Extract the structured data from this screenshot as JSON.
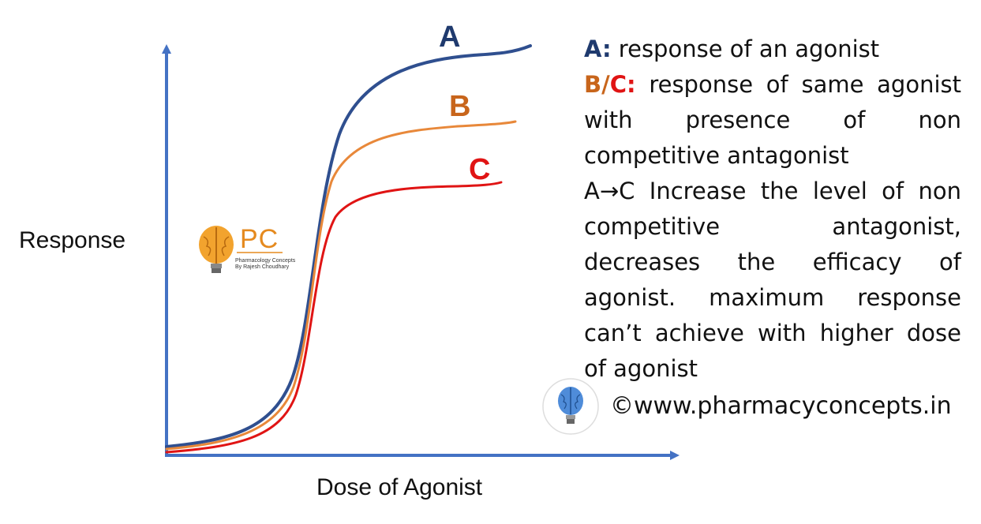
{
  "axes": {
    "y_label": "Response",
    "x_label": "Dose of Agonist",
    "color": "#4472c4"
  },
  "curves": [
    {
      "id": "A",
      "label": "A",
      "color": "#2f4f8f",
      "text_color": "#1f3a6e"
    },
    {
      "id": "B",
      "label": "B",
      "color": "#e8883a",
      "text_color": "#c8651b"
    },
    {
      "id": "C",
      "label": "C",
      "color": "#e01414",
      "text_color": "#e01414"
    }
  ],
  "logo": {
    "text": "PC",
    "tagline_1": "Pharmacology Concepts",
    "tagline_2": "By Rajesh Choudhary"
  },
  "description": {
    "line1_key": "A:",
    "line1_text": " response of an agonist",
    "line2_key_b": "B/",
    "line2_key_c": "C:",
    "line2_text": " response of same agonist with presence of non competitive antagonist",
    "line3_text": "A→C Increase the level of non competitive antagonist, decreases the efficacy of agonist. maximum response can’t achieve with higher dose of agonist"
  },
  "footer": {
    "copyright": "©www.pharmacyconcepts.in"
  }
}
